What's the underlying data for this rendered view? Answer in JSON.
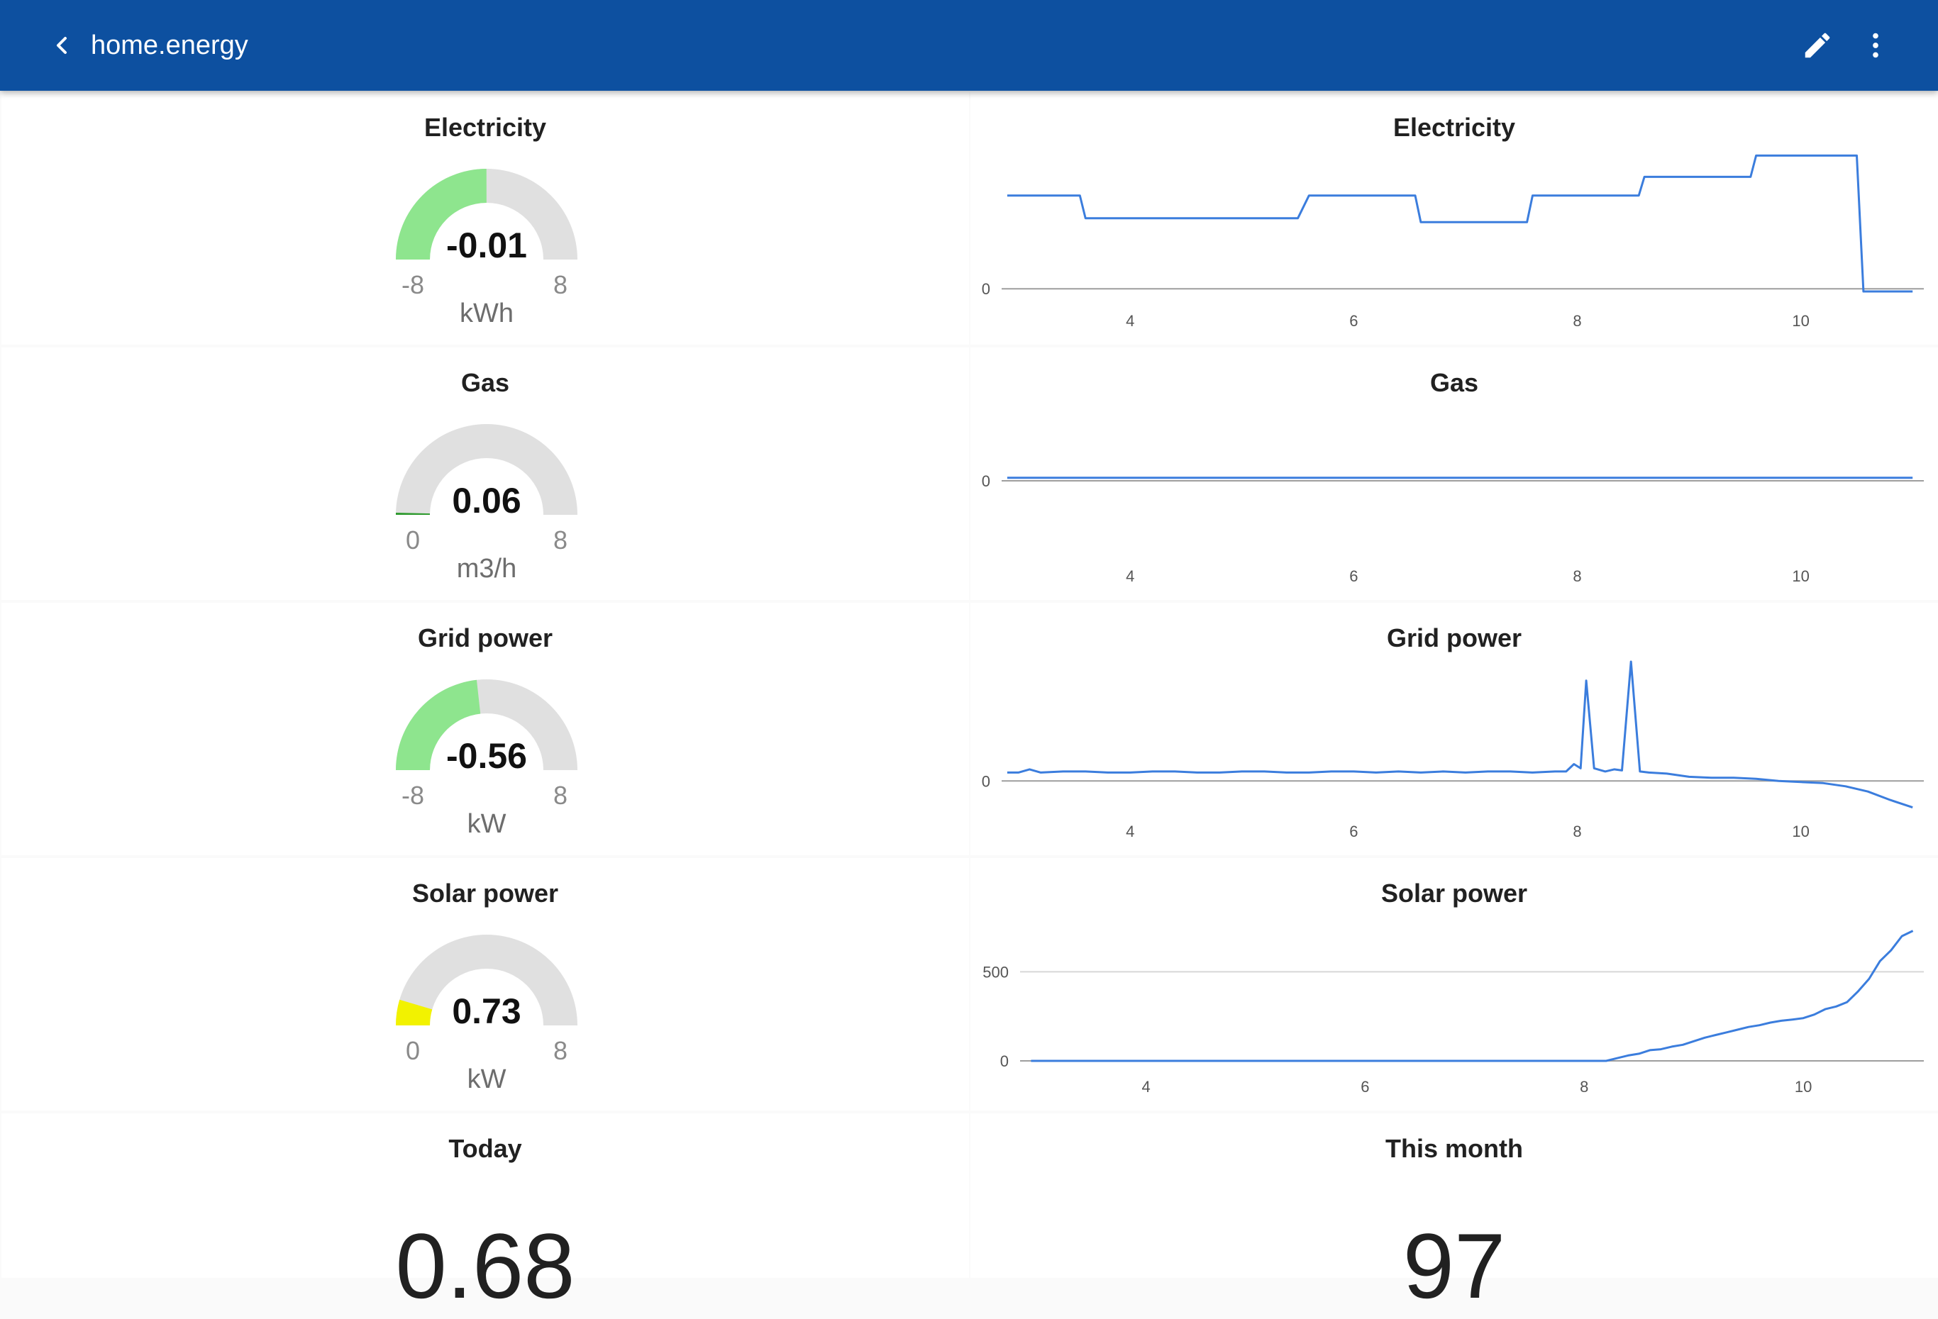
{
  "app": {
    "title": "home.energy"
  },
  "icons": {
    "back": "chevron-left-icon",
    "edit": "pencil-icon",
    "menu": "more-vertical-icon"
  },
  "colors": {
    "appbar": "#0d50a0",
    "gauge_track": "#e0e0e0",
    "line": "#3b7ddd",
    "gauge_green": "#8ee58e",
    "gauge_yellow": "#f2f200",
    "gauge_low": "#2e9a2e"
  },
  "gauges": [
    {
      "title": "Electricity",
      "value": -0.01,
      "value_text": "-0.01",
      "min": -8,
      "max": 8,
      "min_text": "-8",
      "max_text": "8",
      "unit": "kWh",
      "color": "#8ee58e"
    },
    {
      "title": "Gas",
      "value": 0.06,
      "value_text": "0.06",
      "min": 0,
      "max": 8,
      "min_text": "0",
      "max_text": "8",
      "unit": "m3/h",
      "color": "#2e9a2e"
    },
    {
      "title": "Grid power",
      "value": -0.56,
      "value_text": "-0.56",
      "min": -8,
      "max": 8,
      "min_text": "-8",
      "max_text": "8",
      "unit": "kW",
      "color": "#8ee58e"
    },
    {
      "title": "Solar power",
      "value": 0.73,
      "value_text": "0.73",
      "min": 0,
      "max": 8,
      "min_text": "0",
      "max_text": "8",
      "unit": "kW",
      "color": "#f2f200"
    }
  ],
  "chart_data": [
    {
      "type": "line",
      "title": "Electricity",
      "xlim": [
        2.85,
        11.1
      ],
      "x_ticks": [
        4,
        6,
        8,
        10
      ],
      "x_tick_labels": [
        "4",
        "6",
        "8",
        "10"
      ],
      "ylim": [
        -0.1,
        1.05
      ],
      "y_ticks": [
        0
      ],
      "y_tick_labels": [
        "0"
      ],
      "step": true,
      "series": [
        {
          "x": [
            2.9,
            3.55,
            3.6,
            5.5,
            5.6,
            6.55,
            6.6,
            7.55,
            7.6,
            8.55,
            8.6,
            9.55,
            9.6,
            10.5,
            10.56,
            11.0
          ],
          "y": [
            0.7,
            0.7,
            0.53,
            0.53,
            0.7,
            0.7,
            0.5,
            0.5,
            0.7,
            0.7,
            0.84,
            0.84,
            1.0,
            1.0,
            -0.02,
            -0.02
          ]
        }
      ],
      "grid": false
    },
    {
      "type": "line",
      "title": "Gas",
      "xlim": [
        2.85,
        11.1
      ],
      "x_ticks": [
        4,
        6,
        8,
        10
      ],
      "x_tick_labels": [
        "4",
        "6",
        "8",
        "10"
      ],
      "ylim": [
        -1,
        1
      ],
      "y_ticks": [
        0
      ],
      "y_tick_labels": [
        "0"
      ],
      "series": [
        {
          "x": [
            2.9,
            11.0
          ],
          "y": [
            0.04,
            0.04
          ]
        }
      ],
      "grid": false
    },
    {
      "type": "line",
      "title": "Grid power",
      "xlim": [
        2.85,
        11.1
      ],
      "x_ticks": [
        4,
        6,
        8,
        10
      ],
      "x_tick_labels": [
        "4",
        "6",
        "8",
        "10"
      ],
      "ylim": [
        -0.3,
        1.15
      ],
      "y_ticks": [
        0
      ],
      "y_tick_labels": [
        "0"
      ],
      "series": [
        {
          "x": [
            2.9,
            3.0,
            3.1,
            3.2,
            3.4,
            3.6,
            3.8,
            4.0,
            4.2,
            4.4,
            4.6,
            4.8,
            5.0,
            5.2,
            5.4,
            5.6,
            5.8,
            6.0,
            6.2,
            6.4,
            6.6,
            6.8,
            7.0,
            7.2,
            7.4,
            7.6,
            7.8,
            7.9,
            7.97,
            8.03,
            8.08,
            8.15,
            8.25,
            8.33,
            8.4,
            8.48,
            8.56,
            8.64,
            8.8,
            9.0,
            9.2,
            9.4,
            9.6,
            9.8,
            10.0,
            10.2,
            10.4,
            10.6,
            10.8,
            11.0
          ],
          "y": [
            0.08,
            0.08,
            0.11,
            0.08,
            0.09,
            0.09,
            0.08,
            0.08,
            0.09,
            0.09,
            0.08,
            0.08,
            0.09,
            0.09,
            0.08,
            0.08,
            0.09,
            0.09,
            0.08,
            0.09,
            0.08,
            0.09,
            0.08,
            0.09,
            0.09,
            0.08,
            0.09,
            0.09,
            0.16,
            0.12,
            0.95,
            0.12,
            0.09,
            0.11,
            0.1,
            1.13,
            0.09,
            0.08,
            0.07,
            0.04,
            0.03,
            0.03,
            0.02,
            0.0,
            -0.01,
            -0.02,
            -0.05,
            -0.1,
            -0.18,
            -0.25
          ]
        }
      ],
      "grid": false
    },
    {
      "type": "line",
      "title": "Solar power",
      "xlim": [
        2.85,
        11.1
      ],
      "x_ticks": [
        4,
        6,
        8,
        10
      ],
      "x_tick_labels": [
        "4",
        "6",
        "8",
        "10"
      ],
      "ylim": [
        -40,
        820
      ],
      "y_ticks": [
        0,
        500
      ],
      "y_tick_labels": [
        "0",
        "500"
      ],
      "series": [
        {
          "x": [
            2.95,
            4.0,
            5.0,
            6.0,
            7.0,
            8.0,
            8.2,
            8.3,
            8.4,
            8.5,
            8.6,
            8.7,
            8.8,
            8.9,
            9.0,
            9.1,
            9.2,
            9.3,
            9.4,
            9.5,
            9.6,
            9.7,
            9.8,
            9.9,
            10.0,
            10.1,
            10.2,
            10.3,
            10.4,
            10.5,
            10.6,
            10.7,
            10.8,
            10.9,
            11.0
          ],
          "y": [
            0,
            0,
            0,
            0,
            0,
            0,
            0,
            15,
            30,
            40,
            60,
            65,
            80,
            90,
            110,
            130,
            145,
            160,
            175,
            190,
            200,
            215,
            225,
            232,
            240,
            260,
            290,
            305,
            330,
            390,
            460,
            560,
            620,
            700,
            730
          ]
        }
      ],
      "grid": true
    }
  ],
  "stats": [
    {
      "title": "Today",
      "value": "0.68"
    },
    {
      "title": "This month",
      "value": "97"
    }
  ]
}
